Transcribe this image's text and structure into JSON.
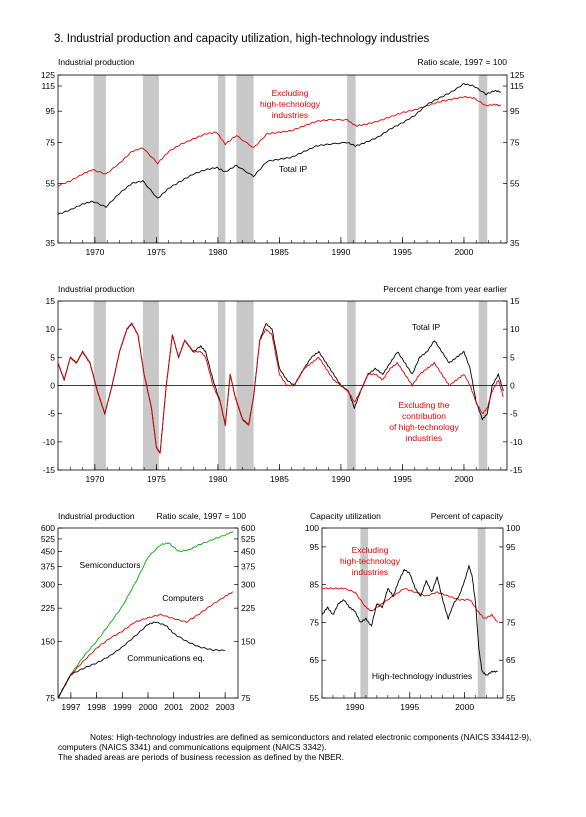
{
  "figure_title": "3.  Industrial production and capacity utilization, high-technology industries",
  "colors": {
    "black": "#000000",
    "red": "#e00000",
    "green": "#00b000",
    "recession": "#c8c8c8"
  },
  "notes": {
    "line1": "Notes:  High-technology industries are defined as semiconductors and related electronic components (NAICS 334412-9),",
    "line2": "computers (NAICS 3341) and communications equipment (NAICS 3342).",
    "line3": "The shaded areas are periods of business recession as defined by the NBER."
  },
  "chart_data": [
    {
      "type": "line",
      "panel_label": "Industrial production",
      "scale_label": "Ratio scale, 1997 = 100",
      "log_scale": true,
      "ylim": [
        35,
        125
      ],
      "yticks": [
        35,
        55,
        75,
        95,
        115,
        125
      ],
      "xlim": [
        1967,
        2003.5
      ],
      "xticks": [
        1970,
        1975,
        1980,
        1985,
        1990,
        1995,
        2000
      ],
      "recessions": [
        [
          1969.9,
          1970.9
        ],
        [
          1973.9,
          1975.2
        ],
        [
          1980.0,
          1980.6
        ],
        [
          1981.5,
          1982.9
        ],
        [
          1990.5,
          1991.2
        ],
        [
          2001.2,
          2001.9
        ]
      ],
      "annotations": {
        "excl": [
          "Excluding",
          "high-technology",
          "industries"
        ],
        "total": "Total IP"
      },
      "series": [
        {
          "name": "Excluding high-technology industries",
          "color": "red",
          "x": [
            1967,
            1968,
            1969,
            1969.8,
            1970.9,
            1972,
            1973,
            1973.9,
            1975.1,
            1976,
            1977,
            1978,
            1979,
            1979.9,
            1980.6,
            1981.5,
            1982.9,
            1984,
            1985,
            1986,
            1987,
            1988,
            1989,
            1990.5,
            1991.2,
            1992,
            1993,
            1994,
            1995,
            1996,
            1997,
            1998,
            1999,
            2000,
            2000.8,
            2001.8,
            2002.5,
            2003
          ],
          "y": [
            54,
            56,
            59,
            61,
            59,
            64,
            70,
            72,
            64,
            70,
            74,
            77,
            80,
            81,
            74,
            79,
            72,
            80,
            81,
            82,
            85,
            88,
            89,
            89,
            85,
            86,
            88,
            91,
            94,
            96,
            99,
            102,
            104,
            106,
            105,
            99,
            100,
            99
          ]
        },
        {
          "name": "Total IP",
          "color": "black",
          "x": [
            1967,
            1968,
            1969,
            1969.8,
            1970.9,
            1972,
            1973,
            1973.9,
            1975.1,
            1976,
            1977,
            1978,
            1979,
            1979.9,
            1980.6,
            1981.5,
            1982.9,
            1984,
            1985,
            1986,
            1987,
            1988,
            1989,
            1990.5,
            1991.2,
            1992,
            1993,
            1994,
            1995,
            1996,
            1997,
            1998,
            1999,
            2000,
            2000.8,
            2001.8,
            2002.5,
            2003
          ],
          "y": [
            43.5,
            45,
            47,
            48,
            46,
            51,
            55,
            56,
            49,
            53,
            56,
            59,
            61,
            62,
            60,
            63,
            58,
            65,
            66,
            67,
            70,
            73,
            74,
            75,
            73,
            75,
            78,
            83,
            87,
            92,
            100,
            105,
            110,
            117,
            115,
            108,
            111,
            110
          ]
        }
      ]
    },
    {
      "type": "line",
      "panel_label": "Industrial production",
      "scale_label": "Percent change from year earlier",
      "log_scale": false,
      "ylim": [
        -15,
        15
      ],
      "yticks": [
        -15,
        -10,
        -5,
        0,
        5,
        10,
        15
      ],
      "xlim": [
        1967,
        2003.5
      ],
      "xticks": [
        1970,
        1975,
        1980,
        1985,
        1990,
        1995,
        2000
      ],
      "recessions": [
        [
          1969.9,
          1970.9
        ],
        [
          1973.9,
          1975.2
        ],
        [
          1980.0,
          1980.6
        ],
        [
          1981.5,
          1982.9
        ],
        [
          1990.5,
          1991.2
        ],
        [
          2001.2,
          2001.9
        ]
      ],
      "annotations": {
        "total": "Total IP",
        "excl": [
          "Excluding the",
          "contribution",
          "of high-technology",
          "industries"
        ]
      },
      "series": [
        {
          "name": "Total IP",
          "color": "black",
          "x": [
            1967,
            1967.5,
            1968,
            1968.5,
            1969,
            1969.6,
            1970.2,
            1970.8,
            1971.4,
            1972,
            1972.6,
            1973,
            1973.5,
            1974,
            1974.6,
            1975,
            1975.3,
            1975.8,
            1976.3,
            1976.8,
            1977.3,
            1978,
            1978.6,
            1979,
            1979.6,
            1980.2,
            1980.6,
            1981,
            1981.4,
            1982,
            1982.5,
            1982.9,
            1983.4,
            1983.9,
            1984.4,
            1985,
            1985.6,
            1986.2,
            1987,
            1987.6,
            1988.2,
            1988.8,
            1989.4,
            1990,
            1990.6,
            1991.1,
            1991.6,
            1992.2,
            1992.8,
            1993.4,
            1994,
            1994.6,
            1995.2,
            1995.8,
            1996.4,
            1997,
            1997.6,
            1998.2,
            1998.8,
            1999.4,
            2000,
            2000.5,
            2001,
            2001.5,
            2001.9,
            2002.3,
            2002.8,
            2003.2
          ],
          "y": [
            4,
            1,
            5,
            4,
            6,
            4,
            -1,
            -5,
            0,
            6,
            10,
            11,
            9,
            2,
            -4,
            -11,
            -12,
            0,
            9,
            5,
            8,
            6,
            7,
            6,
            1,
            -3,
            -7,
            2,
            -2,
            -6,
            -7,
            -2,
            8,
            11,
            10,
            3,
            1,
            0,
            3,
            5,
            6,
            4,
            2,
            0,
            -1,
            -4,
            -1,
            2,
            3,
            2,
            4,
            6,
            4,
            2,
            5,
            6,
            8,
            6,
            4,
            5,
            6,
            3,
            -3,
            -6,
            -5,
            0,
            2,
            -1
          ]
        },
        {
          "name": "Excluding the contribution of high-technology industries",
          "color": "red",
          "x": [
            1967,
            1967.5,
            1968,
            1968.5,
            1969,
            1969.6,
            1970.2,
            1970.8,
            1971.4,
            1972,
            1972.6,
            1973,
            1973.5,
            1974,
            1974.6,
            1975,
            1975.3,
            1975.8,
            1976.3,
            1976.8,
            1977.3,
            1978,
            1978.6,
            1979,
            1979.6,
            1980.2,
            1980.6,
            1981,
            1981.4,
            1982,
            1982.5,
            1982.9,
            1983.4,
            1983.9,
            1984.4,
            1985,
            1985.6,
            1986.2,
            1987,
            1987.6,
            1988.2,
            1988.8,
            1989.4,
            1990,
            1990.6,
            1991.1,
            1991.6,
            1992.2,
            1992.8,
            1993.4,
            1994,
            1994.6,
            1995.2,
            1995.8,
            1996.4,
            1997,
            1997.6,
            1998.2,
            1998.8,
            1999.4,
            2000,
            2000.5,
            2001,
            2001.5,
            2001.9,
            2002.3,
            2002.8,
            2003.2
          ],
          "y": [
            4,
            1,
            5,
            4,
            6,
            4,
            -1,
            -5,
            0,
            6,
            10,
            11,
            9,
            2,
            -4,
            -11,
            -12,
            0,
            9,
            5,
            8,
            6,
            6,
            5,
            0,
            -3,
            -7,
            2,
            -2,
            -6,
            -7,
            -2,
            8,
            10,
            9,
            2,
            0,
            0,
            3,
            4,
            5,
            3,
            1,
            0,
            -1,
            -3,
            -1,
            2,
            2,
            1,
            3,
            4,
            2,
            0,
            2,
            3,
            4,
            2,
            0,
            1,
            2,
            0,
            -3,
            -5,
            -4,
            -1,
            1,
            -2
          ]
        }
      ]
    },
    {
      "type": "line",
      "panel_label": "Industrial production",
      "scale_label": "Ratio scale, 1997 = 100",
      "log_scale": true,
      "ylim": [
        75,
        600
      ],
      "yticks": [
        75,
        150,
        225,
        300,
        375,
        450,
        525,
        600
      ],
      "xlim": [
        1996.5,
        2003.5
      ],
      "xticks": [
        1997,
        1998,
        1999,
        2000,
        2001,
        2002,
        2003
      ],
      "recessions": [],
      "series": [
        {
          "name": "Semiconductors",
          "color": "green",
          "x": [
            1996.5,
            1997,
            1997.5,
            1998,
            1998.5,
            1999,
            1999.5,
            2000,
            2000.5,
            2000.8,
            2001.2,
            2001.6,
            2002,
            2002.5,
            2003,
            2003.3
          ],
          "y": [
            75,
            100,
            125,
            150,
            185,
            230,
            305,
            420,
            490,
            500,
            450,
            460,
            490,
            520,
            550,
            575
          ]
        },
        {
          "name": "Computers",
          "color": "red",
          "x": [
            1996.5,
            1997,
            1997.5,
            1998,
            1998.5,
            1999,
            1999.5,
            2000,
            2000.5,
            2001,
            2001.5,
            2002,
            2002.5,
            2003,
            2003.3
          ],
          "y": [
            75,
            100,
            118,
            138,
            155,
            170,
            190,
            200,
            208,
            198,
            190,
            210,
            235,
            260,
            275
          ]
        },
        {
          "name": "Communications eq.",
          "color": "black",
          "x": [
            1996.5,
            1997,
            1997.5,
            1998,
            1998.5,
            1999,
            1999.5,
            2000,
            2000.3,
            2000.7,
            2001,
            2001.5,
            2002,
            2002.5,
            2003
          ],
          "y": [
            75,
            100,
            108,
            115,
            125,
            140,
            160,
            185,
            190,
            182,
            165,
            150,
            140,
            135,
            134
          ]
        }
      ]
    },
    {
      "type": "line",
      "panel_label": "Capacity utilization",
      "scale_label": "Percent of capacity",
      "log_scale": false,
      "ylim": [
        55,
        100
      ],
      "yticks": [
        55,
        65,
        75,
        85,
        95,
        100
      ],
      "xlim": [
        1987,
        2003.5
      ],
      "xticks": [
        1990,
        1995,
        2000
      ],
      "recessions": [
        [
          1990.5,
          1991.2
        ],
        [
          2001.2,
          2001.9
        ]
      ],
      "annotations": {
        "excl": [
          "Excluding",
          "high-technology",
          "industries"
        ],
        "hightech": "High-technology industries"
      },
      "series": [
        {
          "name": "Excluding high-technology industries",
          "color": "red",
          "x": [
            1987,
            1988,
            1989,
            1990,
            1991,
            1991.5,
            1992.5,
            1993.5,
            1994.5,
            1995.5,
            1996.5,
            1997.5,
            1998.5,
            1999.5,
            2000.5,
            2001.2,
            2001.8,
            2002.5,
            2003
          ],
          "y": [
            84,
            84,
            84,
            83,
            79,
            78,
            80,
            82,
            84,
            83,
            82,
            83,
            82,
            81,
            81,
            78,
            76,
            77,
            75
          ]
        },
        {
          "name": "High-technology industries",
          "color": "black",
          "x": [
            1987,
            1987.5,
            1988,
            1988.5,
            1989,
            1989.5,
            1990,
            1990.5,
            1991,
            1991.5,
            1992,
            1992.5,
            1993,
            1993.5,
            1994,
            1994.5,
            1995,
            1995.5,
            1996,
            1996.5,
            1997,
            1997.5,
            1998,
            1998.5,
            1999,
            1999.5,
            2000,
            2000.4,
            2000.7,
            2001,
            2001.3,
            2001.6,
            2002,
            2002.5,
            2003
          ],
          "y": [
            77,
            79,
            77,
            80,
            81,
            79,
            78,
            75,
            76,
            74,
            80,
            79,
            84,
            82,
            86,
            89,
            88,
            84,
            82,
            86,
            83,
            87,
            81,
            76,
            80,
            82,
            86,
            90,
            87,
            80,
            68,
            62,
            61,
            62,
            62
          ]
        }
      ]
    }
  ]
}
